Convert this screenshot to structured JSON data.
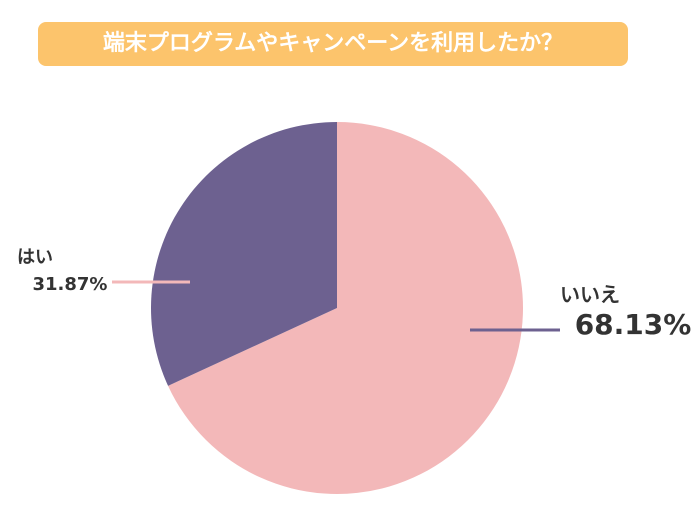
{
  "chart_data": {
    "type": "pie",
    "title": "端末プログラムやキャンペーンを利用したか？",
    "categories": [
      "いいえ",
      "はい"
    ],
    "values": [
      68.13,
      31.87
    ],
    "value_labels": [
      "68.13%",
      "31.87%"
    ],
    "colors": [
      "#f3b8b9",
      "#6d6190"
    ]
  }
}
